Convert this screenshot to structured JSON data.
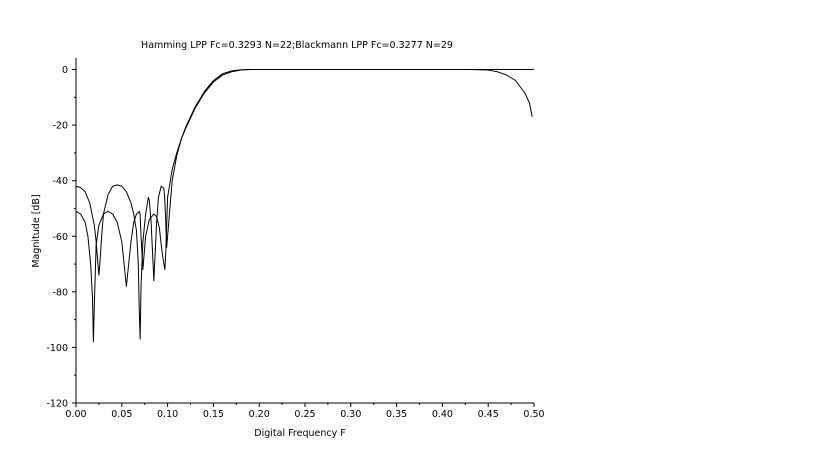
{
  "chart_data": {
    "type": "line",
    "title": "Hamming LPP Fc=0.3293 N=22;Blackmann LPP Fc=0.3277 N=29",
    "xlabel": "Digital Frequency F",
    "ylabel": "Magnitude [dB]",
    "xlim": [
      0.0,
      0.5
    ],
    "ylim": [
      -120,
      5
    ],
    "xticks": [
      "0.00",
      "0.05",
      "0.10",
      "0.15",
      "0.20",
      "0.25",
      "0.30",
      "0.35",
      "0.40",
      "0.45",
      "0.50"
    ],
    "xtick_values": [
      0,
      0.05,
      0.1,
      0.15,
      0.2,
      0.25,
      0.3,
      0.35,
      0.4,
      0.45,
      0.5
    ],
    "yticks": [
      "0",
      "-20",
      "-40",
      "-60",
      "-80",
      "-100",
      "-120"
    ],
    "ytick_values": [
      0,
      -20,
      -40,
      -60,
      -80,
      -100,
      -120
    ],
    "grid": false,
    "legend": "none",
    "line_color": "#000000",
    "series": [
      {
        "x": [
          0.0,
          0.005,
          0.01,
          0.013,
          0.016,
          0.018,
          0.019,
          0.02,
          0.022,
          0.025,
          0.03,
          0.035,
          0.04,
          0.045,
          0.05,
          0.055,
          0.06,
          0.063,
          0.066,
          0.068,
          0.069,
          0.07,
          0.071,
          0.073,
          0.076,
          0.08,
          0.085,
          0.088,
          0.091,
          0.093,
          0.095,
          0.096,
          0.097,
          0.098,
          0.1,
          0.105,
          0.11,
          0.115,
          0.12,
          0.13,
          0.14,
          0.15,
          0.16,
          0.17,
          0.18,
          0.19,
          0.2,
          0.21,
          0.25,
          0.3,
          0.35,
          0.4,
          0.45,
          0.5
        ],
        "y": [
          -51,
          -52,
          -55,
          -60,
          -70,
          -82,
          -98,
          -85,
          -63,
          -56,
          -52,
          -51,
          -52,
          -55,
          -62,
          -78,
          -62,
          -55,
          -52,
          -51.5,
          -51,
          -52,
          -60,
          -72,
          -60,
          -54,
          -52,
          -53,
          -57,
          -63,
          -68,
          -70,
          -72,
          -66,
          -46,
          -36,
          -30,
          -25,
          -21,
          -14,
          -8.5,
          -4.5,
          -2,
          -0.8,
          -0.2,
          0,
          0,
          0,
          0,
          0,
          0,
          0,
          0,
          0
        ]
      },
      {
        "x": [
          0.0,
          0.005,
          0.01,
          0.015,
          0.02,
          0.022,
          0.024,
          0.025,
          0.026,
          0.028,
          0.03,
          0.035,
          0.04,
          0.045,
          0.05,
          0.055,
          0.06,
          0.063,
          0.066,
          0.068,
          0.069,
          0.07,
          0.071,
          0.073,
          0.076,
          0.079,
          0.08,
          0.082,
          0.085,
          0.088,
          0.09,
          0.093,
          0.095,
          0.096,
          0.097,
          0.098,
          0.099,
          0.1,
          0.105,
          0.11,
          0.115,
          0.12,
          0.13,
          0.14,
          0.15,
          0.16,
          0.17,
          0.18,
          0.19,
          0.2,
          0.21,
          0.25,
          0.3,
          0.35,
          0.4,
          0.43,
          0.45,
          0.46,
          0.47,
          0.48,
          0.49,
          0.495,
          0.498
        ],
        "y": [
          -42,
          -42.5,
          -44,
          -48,
          -56,
          -62,
          -70,
          -74,
          -70,
          -60,
          -52,
          -45,
          -42,
          -41.5,
          -42,
          -44,
          -48,
          -52,
          -58,
          -70,
          -86,
          -97,
          -78,
          -62,
          -52,
          -46,
          -47,
          -55,
          -76,
          -55,
          -46,
          -42,
          -42.5,
          -43,
          -47,
          -55,
          -64,
          -60,
          -40,
          -31,
          -25,
          -20.5,
          -13.5,
          -8,
          -4,
          -1.5,
          -0.5,
          -0.1,
          0,
          0,
          0,
          0,
          0,
          0,
          0,
          0,
          -0.2,
          -0.8,
          -2,
          -4,
          -8.5,
          -12,
          -17
        ]
      }
    ]
  }
}
